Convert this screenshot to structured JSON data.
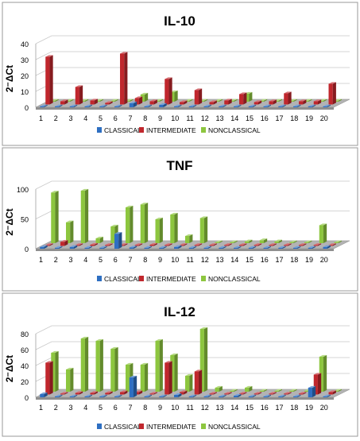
{
  "chart_data": [
    {
      "type": "bar",
      "title": "IL-10",
      "ylabel": "2⁻ΔCt",
      "ylim": [
        0,
        40
      ],
      "yticks": [
        0,
        10,
        20,
        30,
        40
      ],
      "categories": [
        "1",
        "2",
        "3",
        "4",
        "5",
        "6",
        "7",
        "8",
        "9",
        "10",
        "11",
        "12",
        "13",
        "14",
        "15",
        "16",
        "17",
        "18",
        "19",
        "20"
      ],
      "series": [
        {
          "name": "CLASSICAL",
          "color": "#2E6FC2",
          "values": [
            0.2,
            0.2,
            0.5,
            0.2,
            0.2,
            0.2,
            2.5,
            0.3,
            1.5,
            0.3,
            0.2,
            0.2,
            0.2,
            0.5,
            0.2,
            0.2,
            0.2,
            0.2,
            0.2,
            0.2
          ]
        },
        {
          "name": "INTERMEDIATE",
          "color": "#C0272D",
          "values": [
            30,
            2,
            11,
            2.5,
            1,
            32,
            4,
            2,
            16,
            1.5,
            9,
            1.5,
            2.5,
            6.5,
            1.5,
            2,
            7,
            2,
            2,
            13
          ]
        },
        {
          "name": "NONCLASSICAL",
          "color": "#8DC63F",
          "values": [
            0.5,
            0.5,
            0.5,
            0.5,
            0.5,
            0.5,
            4.5,
            0.5,
            6,
            0.5,
            0.5,
            0.5,
            0.5,
            5,
            0.5,
            0.5,
            0.5,
            0.5,
            0.5,
            0.5
          ]
        }
      ]
    },
    {
      "type": "bar",
      "title": "TNF",
      "ylabel": "2⁻ΔCt",
      "ylim": [
        0,
        100
      ],
      "yticks": [
        0,
        50,
        100
      ],
      "categories": [
        "1",
        "2",
        "3",
        "4",
        "5",
        "6",
        "7",
        "8",
        "9",
        "10",
        "11",
        "12",
        "13",
        "14",
        "15",
        "16",
        "17",
        "18",
        "19",
        "20"
      ],
      "series": [
        {
          "name": "CLASSICAL",
          "color": "#2E6FC2",
          "values": [
            3,
            0.5,
            3,
            0.5,
            0.5,
            25,
            2,
            0.5,
            0.5,
            3,
            1,
            0.5,
            0.5,
            0.5,
            0.5,
            0.5,
            0.5,
            0.5,
            0.5,
            3
          ]
        },
        {
          "name": "INTERMEDIATE",
          "color": "#C0272D",
          "values": [
            0.5,
            7,
            0.5,
            2,
            0.5,
            0.5,
            0.5,
            2,
            0.5,
            0.5,
            0.5,
            0.5,
            0.5,
            0.5,
            0.5,
            0.5,
            0.5,
            0.5,
            0.5,
            0.5
          ]
        },
        {
          "name": "NONCLASSICAL",
          "color": "#8DC63F",
          "values": [
            85,
            35,
            88,
            8,
            28,
            60,
            65,
            40,
            48,
            12,
            42,
            0.5,
            0.5,
            3,
            5,
            3,
            1,
            0.5,
            30,
            0.5
          ]
        }
      ]
    },
    {
      "type": "bar",
      "title": "IL-12",
      "ylabel": "2⁻ΔCt",
      "ylim": [
        0,
        80
      ],
      "yticks": [
        0,
        20,
        40,
        60,
        80
      ],
      "categories": [
        "1",
        "2",
        "3",
        "4",
        "5",
        "6",
        "7",
        "8",
        "9",
        "10",
        "11",
        "12",
        "13",
        "14",
        "15",
        "16",
        "17",
        "18",
        "19",
        "20"
      ],
      "series": [
        {
          "name": "CLASSICAL",
          "color": "#2E6FC2",
          "values": [
            4,
            1,
            1,
            1,
            0.5,
            1,
            25,
            1,
            1,
            3,
            1,
            0.5,
            0.5,
            2,
            0.5,
            0.5,
            0.5,
            0.5,
            12,
            1
          ]
        },
        {
          "name": "INTERMEDIATE",
          "color": "#C0272D",
          "values": [
            40,
            1,
            2,
            2,
            2,
            3,
            3,
            1,
            40,
            3,
            29,
            1,
            1,
            1,
            1,
            1,
            1,
            1,
            25,
            3
          ]
        },
        {
          "name": "NONCLASSICAL",
          "color": "#8DC63F",
          "values": [
            49,
            28,
            67,
            64,
            54,
            34,
            34,
            64,
            46,
            20,
            79,
            5,
            1,
            5,
            1,
            1,
            1,
            1,
            44,
            1
          ]
        }
      ]
    }
  ]
}
